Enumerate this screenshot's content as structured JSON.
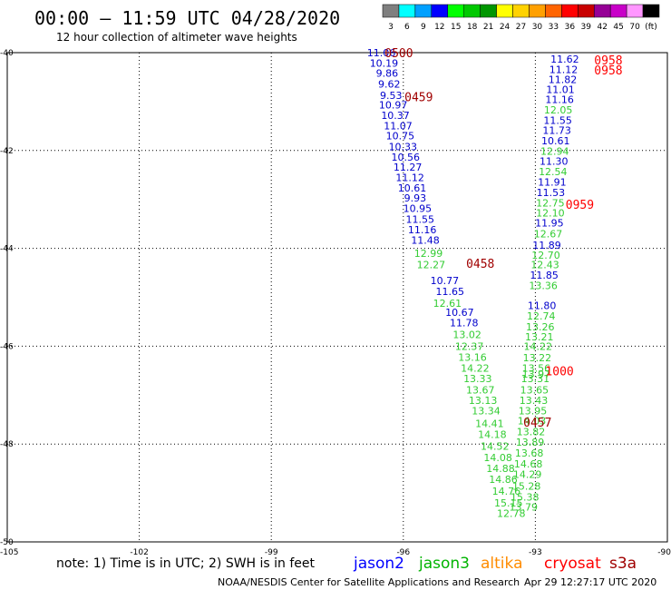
{
  "title": "00:00 – 11:59 UTC 04/28/2020",
  "subtitle": "12 hour collection of altimeter wave heights",
  "note": "note:  1) Time is in UTC;  2) SWH is in feet",
  "credit": "NOAA/NESDIS Center for Satellite Applications and Research",
  "timestamp": "Apr 29 12:27:17 UTC 2020",
  "colorbar": {
    "labels": [
      "3",
      "6",
      "9",
      "12",
      "15",
      "18",
      "21",
      "24",
      "27",
      "30",
      "33",
      "36",
      "39",
      "42",
      "45",
      "70",
      "(ft)"
    ],
    "colors": [
      "#7f7f7f",
      "#00ffff",
      "#00a0ff",
      "#0000ff",
      "#00ff00",
      "#00c800",
      "#009600",
      "#ffff00",
      "#ffd200",
      "#ffa000",
      "#ff6400",
      "#ff0000",
      "#c80000",
      "#960096",
      "#c800c8",
      "#ff96ff",
      "#000000"
    ]
  },
  "legend": [
    {
      "name": "jason2",
      "color": "#0000ff"
    },
    {
      "name": "jason3",
      "color": "#00b400"
    },
    {
      "name": "altika",
      "color": "#ff8c00"
    },
    {
      "name": "cryosat",
      "color": "#ff0000"
    },
    {
      "name": "s3a",
      "color": "#a00000"
    }
  ],
  "chart_data": {
    "type": "scatter",
    "xlim": [
      -105,
      -90
    ],
    "ylim": [
      -50,
      -40
    ],
    "x_ticks": [
      -105,
      -102,
      -99,
      -96,
      -93,
      -90
    ],
    "y_ticks": [
      -40,
      -42,
      -44,
      -46,
      -48,
      -50
    ],
    "x_tick_labels": [
      "-105",
      "-102",
      "-99",
      "-96",
      "-93",
      "-90"
    ],
    "y_tick_labels": [
      "-40",
      "-42",
      "-44",
      "-46",
      "-48",
      "-50"
    ],
    "grid": true,
    "series": [
      {
        "name": "jason2",
        "color": "#0000cc",
        "points": [
          [
            -96.5,
            -40.0,
            "11.06"
          ],
          [
            -96.44,
            -40.21,
            "10.19"
          ],
          [
            -96.37,
            -40.42,
            "9.86"
          ],
          [
            -96.32,
            -40.64,
            "9.62"
          ],
          [
            -96.28,
            -40.87,
            "9.53"
          ],
          [
            -96.23,
            -41.07,
            "10.97"
          ],
          [
            -96.18,
            -41.28,
            "10.37"
          ],
          [
            -96.12,
            -41.49,
            "11.07"
          ],
          [
            -96.07,
            -41.7,
            "10.75"
          ],
          [
            -96.01,
            -41.92,
            "10.33"
          ],
          [
            -95.95,
            -42.13,
            "10.56"
          ],
          [
            -95.9,
            -42.34,
            "11.27"
          ],
          [
            -95.85,
            -42.55,
            "11.12"
          ],
          [
            -95.8,
            -42.76,
            "10.61"
          ],
          [
            -95.73,
            -42.97,
            "9.93"
          ],
          [
            -95.68,
            -43.18,
            "10.95"
          ],
          [
            -95.62,
            -43.4,
            "11.55"
          ],
          [
            -95.57,
            -43.62,
            "11.16"
          ],
          [
            -95.5,
            -43.83,
            "11.48"
          ],
          [
            -95.06,
            -44.66,
            "10.77"
          ],
          [
            -94.94,
            -44.88,
            "11.65"
          ],
          [
            -94.72,
            -45.31,
            "10.67"
          ],
          [
            -94.62,
            -45.52,
            "11.78"
          ],
          [
            -92.33,
            -40.13,
            "11.62"
          ],
          [
            -92.36,
            -40.34,
            "11.12"
          ],
          [
            -92.38,
            -40.55,
            "11.82"
          ],
          [
            -92.43,
            -40.75,
            "11.01"
          ],
          [
            -92.45,
            -40.96,
            "11.16"
          ],
          [
            -92.49,
            -41.38,
            "11.55"
          ],
          [
            -92.51,
            -41.59,
            "11.73"
          ],
          [
            -92.54,
            -41.8,
            "10.61"
          ],
          [
            -92.58,
            -42.22,
            "11.30"
          ],
          [
            -92.62,
            -42.64,
            "11.91"
          ],
          [
            -92.65,
            -42.86,
            "11.53"
          ],
          [
            -92.68,
            -43.48,
            "11.95"
          ],
          [
            -92.74,
            -43.93,
            "11.89"
          ],
          [
            -92.8,
            -44.55,
            "11.85"
          ],
          [
            -92.85,
            -45.17,
            "11.80"
          ]
        ]
      },
      {
        "name": "jason3",
        "color": "#33cc33",
        "points": [
          [
            -95.43,
            -44.1,
            "12.99"
          ],
          [
            -95.37,
            -44.33,
            "12.27"
          ],
          [
            -95.0,
            -45.12,
            "12.61"
          ],
          [
            -94.55,
            -45.76,
            "13.02"
          ],
          [
            -94.5,
            -46.0,
            "12.37"
          ],
          [
            -94.43,
            -46.22,
            "13.16"
          ],
          [
            -94.37,
            -46.45,
            "14.22"
          ],
          [
            -94.31,
            -46.66,
            "13.33"
          ],
          [
            -94.25,
            -46.89,
            "13.67"
          ],
          [
            -94.19,
            -47.11,
            "13.13"
          ],
          [
            -94.12,
            -47.32,
            "13.34"
          ],
          [
            -94.04,
            -47.58,
            "14.41"
          ],
          [
            -93.98,
            -47.8,
            "14.18"
          ],
          [
            -93.92,
            -48.04,
            "14.52"
          ],
          [
            -93.85,
            -48.27,
            "14.08"
          ],
          [
            -93.79,
            -48.5,
            "14.88"
          ],
          [
            -93.73,
            -48.72,
            "14.86"
          ],
          [
            -93.66,
            -48.96,
            "14.76"
          ],
          [
            -93.61,
            -49.2,
            "15.15"
          ],
          [
            -93.55,
            -49.42,
            "12.78"
          ],
          [
            -92.48,
            -41.17,
            "12.05"
          ],
          [
            -92.56,
            -42.01,
            "12.94"
          ],
          [
            -92.6,
            -42.43,
            "12.54"
          ],
          [
            -92.66,
            -43.07,
            "12.75"
          ],
          [
            -92.66,
            -43.27,
            "12.10"
          ],
          [
            -92.71,
            -43.7,
            "12.67"
          ],
          [
            -92.76,
            -44.14,
            "12.70"
          ],
          [
            -92.78,
            -44.33,
            "12.43"
          ],
          [
            -92.82,
            -44.76,
            "13.36"
          ],
          [
            -92.87,
            -45.38,
            "12.74"
          ],
          [
            -92.89,
            -45.6,
            "13.26"
          ],
          [
            -92.91,
            -45.81,
            "13.21"
          ],
          [
            -92.94,
            -46.0,
            "14.22"
          ],
          [
            -92.96,
            -46.23,
            "13.22"
          ],
          [
            -92.98,
            -46.45,
            "13.56"
          ],
          [
            -93.0,
            -46.66,
            "13.31"
          ],
          [
            -93.02,
            -46.89,
            "13.65"
          ],
          [
            -93.04,
            -47.11,
            "13.43"
          ],
          [
            -93.06,
            -47.32,
            "13.95"
          ],
          [
            -93.08,
            -47.52,
            "14.03"
          ],
          [
            -93.1,
            -47.75,
            "13.82"
          ],
          [
            -93.12,
            -47.96,
            "13.89"
          ],
          [
            -93.14,
            -48.18,
            "13.68"
          ],
          [
            -93.16,
            -48.4,
            "14.68"
          ],
          [
            -93.18,
            -48.62,
            "14.29"
          ],
          [
            -93.2,
            -48.86,
            "15.28"
          ],
          [
            -93.24,
            -49.08,
            "15.38"
          ],
          [
            -93.27,
            -49.29,
            "13.79"
          ],
          [
            -92.98,
            -46.57,
            "13.97"
          ]
        ]
      }
    ],
    "time_labels": [
      {
        "name": "s3a",
        "color": "#a00000",
        "x": -96.1,
        "y": -40.0,
        "text": "0500"
      },
      {
        "name": "s3a",
        "color": "#a00000",
        "x": -95.65,
        "y": -40.9,
        "text": "0459"
      },
      {
        "name": "s3a",
        "color": "#a00000",
        "x": -94.25,
        "y": -44.3,
        "text": "0458"
      },
      {
        "name": "s3a",
        "color": "#a00000",
        "x": -92.95,
        "y": -47.55,
        "text": "0457"
      },
      {
        "name": "cryosat",
        "color": "#ff0000",
        "x": -91.34,
        "y": -40.15,
        "text": "0958"
      },
      {
        "name": "cryosat",
        "color": "#ff0000",
        "x": -91.34,
        "y": -40.35,
        "text": "0958"
      },
      {
        "name": "cryosat",
        "color": "#ff0000",
        "x": -91.99,
        "y": -43.1,
        "text": "0959"
      },
      {
        "name": "cryosat",
        "color": "#ff0000",
        "x": -92.45,
        "y": -46.5,
        "text": "1000"
      }
    ]
  }
}
